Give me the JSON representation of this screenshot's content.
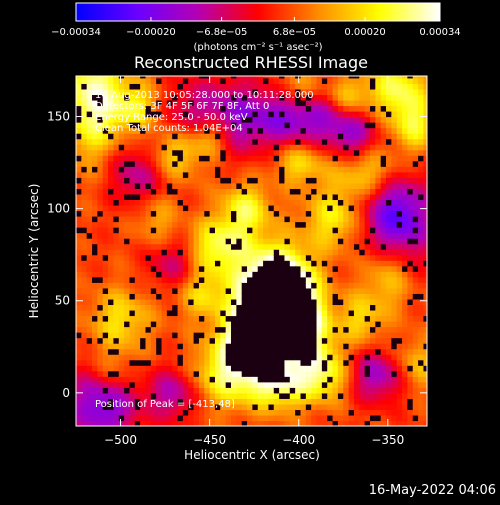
{
  "chart_data": {
    "type": "heatmap",
    "title": "Reconstructed RHESSI Image",
    "xlabel": "Heliocentric X (arcsec)",
    "ylabel": "Heliocentric Y (arcsec)",
    "xlim": [
      -525,
      -328
    ],
    "ylim": [
      -18,
      172
    ],
    "x_ticks": [
      -500,
      -450,
      -400,
      -350
    ],
    "y_ticks": [
      0,
      50,
      100,
      150
    ],
    "x_tick_labels": [
      "−500",
      "−450",
      "−400",
      "−350"
    ],
    "y_tick_labels": [
      "0",
      "50",
      "100",
      "150"
    ],
    "colorbar": {
      "range": [
        -0.00034,
        0.00034
      ],
      "ticks": [
        -0.00034,
        -0.0002,
        -6.8e-05,
        6.8e-05,
        0.0002,
        0.00034
      ],
      "tick_labels": [
        "−0.00034",
        "−0.00020",
        "−6.8e−05",
        "6.8e−05",
        "0.00020",
        "0.00034"
      ],
      "units": "(photons cm⁻² s⁻¹ asec⁻²)",
      "colors": [
        "#0000ff",
        "#6a00ff",
        "#b400b4",
        "#ff0000",
        "#ff8c00",
        "#ffff00",
        "#ffffff"
      ]
    },
    "annotations": {
      "time_range": "14-Aug-2013 10:05:28.000 to 10:11:28.000",
      "detectors": "Detectors: 3F 4F 5F 6F 7F 8F, Att 0",
      "energy": "Energy Range: 25.0 - 50.0 keV",
      "method": "Clean     Total counts: 1.04E+04",
      "peak": "Position of Peak = [-413,48]"
    },
    "peak": [
      -413,
      48
    ]
  },
  "footer": {
    "timestamp": "16-May-2022 04:06"
  }
}
